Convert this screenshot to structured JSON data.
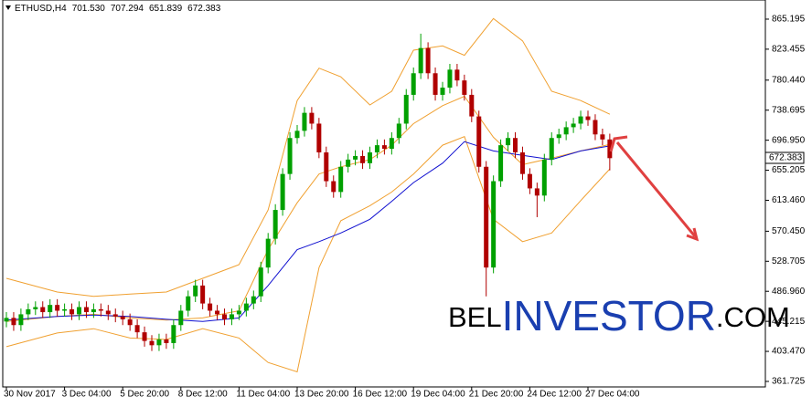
{
  "header": {
    "symbol": "ETHUSD,H4",
    "values": [
      {
        "value": 701.53,
        "label": "701.530"
      },
      707.294,
      651.839,
      672.383
    ]
  },
  "watermark": [
    "BEL",
    "INVESTOR",
    ".COM"
  ],
  "chart_data": {
    "type": "candlestick",
    "categories": [
      "30 Nov 2017",
      null,
      null,
      null,
      null,
      null,
      null,
      null,
      "3 Dec 04:00",
      null,
      null,
      null,
      null,
      null,
      null,
      null,
      "5 Dec 20:00",
      null,
      null,
      null,
      null,
      null,
      null,
      null,
      "8 Dec 12:00",
      null,
      null,
      null,
      null,
      null,
      null,
      null,
      "11 Dec 04:00",
      null,
      null,
      null,
      null,
      null,
      null,
      null,
      "13 Dec 20:00",
      null,
      null,
      null,
      null,
      null,
      null,
      null,
      "16 Dec 12:00",
      null,
      null,
      null,
      null,
      null,
      null,
      null,
      "19 Dec 04:00",
      null,
      null,
      null,
      null,
      null,
      null,
      null,
      "21 Dec 20:00",
      null,
      null,
      null,
      null,
      null,
      null,
      null,
      "24 Dec 12:00",
      null,
      null,
      null,
      null,
      null,
      null,
      null,
      "27 Dec 04:00",
      null,
      null,
      null
    ],
    "open": [
      445,
      450,
      440,
      455,
      462,
      465,
      458,
      468,
      460,
      462,
      455,
      465,
      458,
      462,
      460,
      455,
      452,
      448,
      440,
      430,
      418,
      412,
      420,
      415,
      440,
      460,
      480,
      495,
      470,
      460,
      455,
      448,
      455,
      460,
      470,
      480,
      520,
      560,
      600,
      650,
      700,
      710,
      735,
      720,
      680,
      640,
      625,
      660,
      670,
      675,
      665,
      680,
      690,
      685,
      700,
      720,
      760,
      790,
      825,
      790,
      760,
      770,
      795,
      780,
      760,
      730,
      660,
      520,
      640,
      690,
      700,
      680,
      650,
      630,
      620,
      670,
      700,
      705,
      715,
      720,
      730,
      725,
      705,
      698
    ],
    "high": [
      458,
      458,
      463,
      470,
      473,
      473,
      476,
      476,
      470,
      470,
      473,
      473,
      470,
      470,
      468,
      463,
      460,
      456,
      448,
      438,
      426,
      428,
      428,
      448,
      468,
      488,
      503,
      503,
      478,
      468,
      463,
      463,
      468,
      478,
      488,
      528,
      568,
      608,
      658,
      708,
      718,
      743,
      743,
      728,
      688,
      648,
      668,
      678,
      683,
      683,
      688,
      698,
      698,
      708,
      728,
      768,
      798,
      845,
      833,
      798,
      778,
      803,
      803,
      788,
      768,
      738,
      668,
      648,
      698,
      708,
      708,
      688,
      658,
      638,
      678,
      708,
      713,
      723,
      728,
      738,
      738,
      733,
      713,
      706
    ],
    "low": [
      437,
      432,
      432,
      447,
      454,
      450,
      450,
      452,
      452,
      447,
      447,
      450,
      450,
      452,
      447,
      444,
      440,
      432,
      422,
      410,
      404,
      404,
      407,
      407,
      432,
      452,
      472,
      462,
      452,
      447,
      440,
      440,
      447,
      452,
      462,
      472,
      512,
      552,
      592,
      642,
      692,
      702,
      712,
      672,
      632,
      617,
      617,
      652,
      662,
      657,
      657,
      672,
      677,
      677,
      692,
      712,
      752,
      782,
      782,
      752,
      752,
      762,
      772,
      752,
      722,
      652,
      480,
      512,
      632,
      682,
      672,
      642,
      622,
      590,
      612,
      662,
      692,
      697,
      707,
      712,
      717,
      697,
      690,
      655
    ],
    "close": [
      450,
      440,
      455,
      462,
      465,
      458,
      468,
      460,
      462,
      455,
      465,
      458,
      462,
      460,
      455,
      452,
      448,
      440,
      430,
      418,
      412,
      420,
      415,
      440,
      460,
      480,
      495,
      470,
      460,
      455,
      448,
      455,
      460,
      470,
      480,
      520,
      560,
      600,
      650,
      700,
      710,
      735,
      720,
      680,
      640,
      625,
      660,
      670,
      675,
      665,
      680,
      690,
      685,
      700,
      720,
      760,
      790,
      825,
      790,
      760,
      770,
      795,
      780,
      760,
      730,
      660,
      520,
      640,
      690,
      700,
      680,
      650,
      630,
      620,
      670,
      700,
      705,
      715,
      720,
      730,
      725,
      705,
      698,
      672
    ],
    "up_color": "#00a000",
    "down_color": "#b00000",
    "lines": [
      {
        "color": "#f0a030",
        "x": [
          0,
          7,
          12,
          17,
          22,
          27,
          32,
          36,
          40,
          43,
          46,
          50,
          53,
          56,
          60,
          63,
          67,
          71,
          75,
          79,
          83
        ],
        "values": [
          505,
          486,
          480,
          483,
          486,
          505,
          524,
          600,
          752,
          797,
          785,
          746,
          765,
          822,
          828,
          815,
          866,
          835,
          765,
          752,
          733
        ]
      },
      {
        "color": "#f0a030",
        "x": [
          0,
          7,
          12,
          17,
          22,
          27,
          32,
          36,
          40,
          43,
          46,
          50,
          53,
          56,
          60,
          63,
          67,
          71,
          75,
          79,
          83
        ],
        "values": [
          445,
          452,
          455,
          450,
          447,
          450,
          460,
          545,
          610,
          650,
          660,
          670,
          690,
          720,
          745,
          758,
          701,
          663,
          672,
          682,
          691
        ]
      },
      {
        "color": "#f0a030",
        "x": [
          0,
          7,
          12,
          17,
          22,
          27,
          32,
          36,
          40,
          43,
          46,
          50,
          53,
          56,
          60,
          63,
          67,
          71,
          75,
          79,
          83
        ],
        "values": [
          410,
          429,
          435,
          422,
          420,
          435,
          422,
          388,
          375,
          520,
          585,
          606,
          625,
          650,
          690,
          702,
          587,
          556,
          568,
          613,
          657
        ]
      },
      {
        "color": "#1010d0",
        "x": [
          0,
          7,
          12,
          17,
          22,
          27,
          32,
          36,
          40,
          43,
          46,
          50,
          53,
          56,
          60,
          63,
          67,
          71,
          75,
          79,
          83
        ],
        "values": [
          447,
          452,
          454,
          452,
          448,
          445,
          450,
          495,
          545,
          556,
          568,
          587,
          612,
          638,
          665,
          695,
          682,
          676,
          670,
          682,
          689
        ]
      }
    ],
    "last_price": 672.383,
    "ylim": [
      352.8,
      891.8
    ],
    "yticks": [
      865.195,
      823.455,
      {
        "value": 780.44,
        "label": "780.440"
      },
      738.695,
      {
        "value": 696.95,
        "label": "696.950"
      },
      655.205,
      {
        "value": 613.46,
        "label": "613.460"
      },
      {
        "value": 570.45,
        "label": "570.450"
      },
      528.705,
      {
        "value": 486.96,
        "label": "486.960"
      },
      445.215,
      {
        "value": 403.47,
        "label": "403.470"
      },
      361.725
    ]
  }
}
